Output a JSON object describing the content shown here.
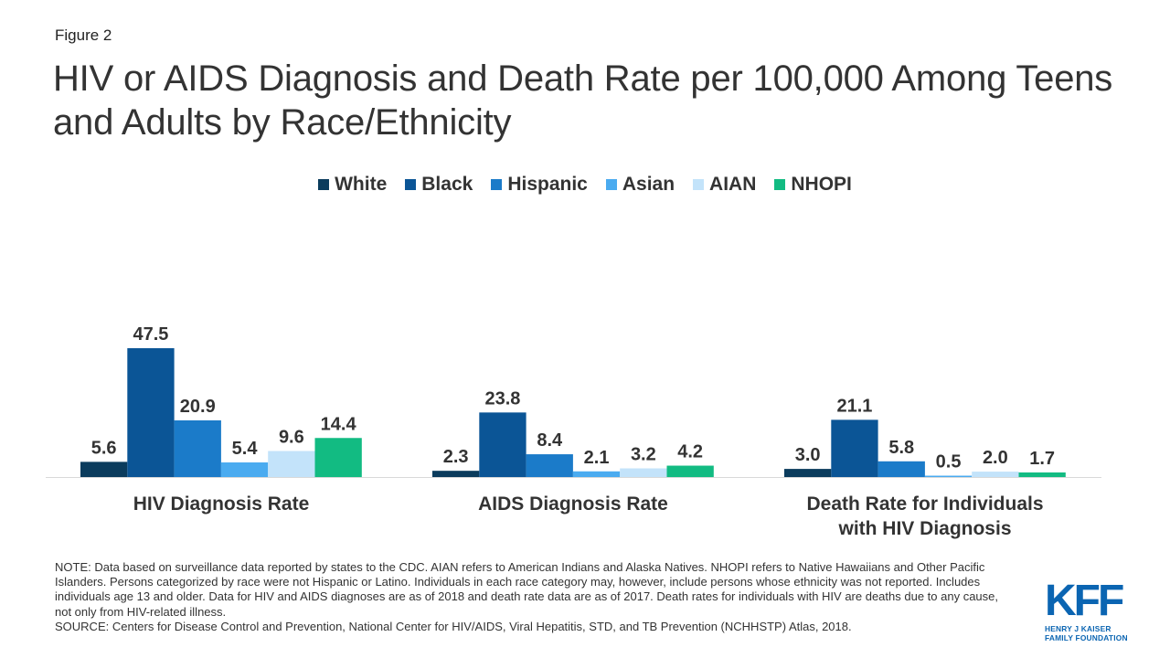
{
  "figure_label": "Figure 2",
  "title": "HIV or AIDS Diagnosis and Death Rate per 100,000 Among Teens and Adults by Race/Ethnicity",
  "colors": {
    "White": "#0b3c5d",
    "Black": "#0b5596",
    "Hispanic": "#1b7bc9",
    "Asian": "#4aabf0",
    "AIAN": "#c3e3fa",
    "NHOPI": "#12bb82"
  },
  "chart_data": {
    "type": "bar",
    "title": "HIV or AIDS Diagnosis and Death Rate per 100,000 Among Teens and Adults by Race/Ethnicity",
    "categories": [
      "HIV Diagnosis Rate",
      "AIDS Diagnosis Rate",
      "Death Rate for Individuals with HIV Diagnosis"
    ],
    "category_lines": [
      [
        "HIV Diagnosis Rate"
      ],
      [
        "AIDS Diagnosis Rate"
      ],
      [
        "Death Rate for Individuals",
        "with HIV Diagnosis"
      ]
    ],
    "series": [
      {
        "name": "White",
        "values": [
          5.6,
          2.3,
          3.0
        ]
      },
      {
        "name": "Black",
        "values": [
          47.5,
          23.8,
          21.1
        ]
      },
      {
        "name": "Hispanic",
        "values": [
          20.9,
          8.4,
          5.8
        ]
      },
      {
        "name": "Asian",
        "values": [
          5.4,
          2.1,
          0.5
        ]
      },
      {
        "name": "AIAN",
        "values": [
          9.6,
          3.2,
          2.0
        ]
      },
      {
        "name": "NHOPI",
        "values": [
          14.4,
          4.2,
          1.7
        ]
      }
    ],
    "ylim": [
      0,
      47.5
    ],
    "data_labels": true,
    "grid": false,
    "legend_position": "top-center"
  },
  "note": "NOTE: Data based on surveillance data reported by states to the CDC. AIAN refers to American Indians and Alaska Natives. NHOPI refers to Native Hawaiians and Other Pacific Islanders. Persons categorized by race were not Hispanic or Latino. Individuals in each race category may, however, include persons whose ethnicity was not reported. Includes individuals age 13 and older. Data for HIV and AIDS diagnoses are as of 2018 and death rate data are as of 2017. Death rates for individuals with HIV are deaths due to any cause, not only from HIV-related illness.",
  "source": "SOURCE: Centers for Disease Control and Prevention, National Center for HIV/AIDS, Viral Hepatitis, STD, and TB Prevention (NCHHSTP) Atlas, 2018.",
  "logo": {
    "mark": "KFF",
    "line1": "HENRY J KAISER",
    "line2": "FAMILY FOUNDATION"
  }
}
